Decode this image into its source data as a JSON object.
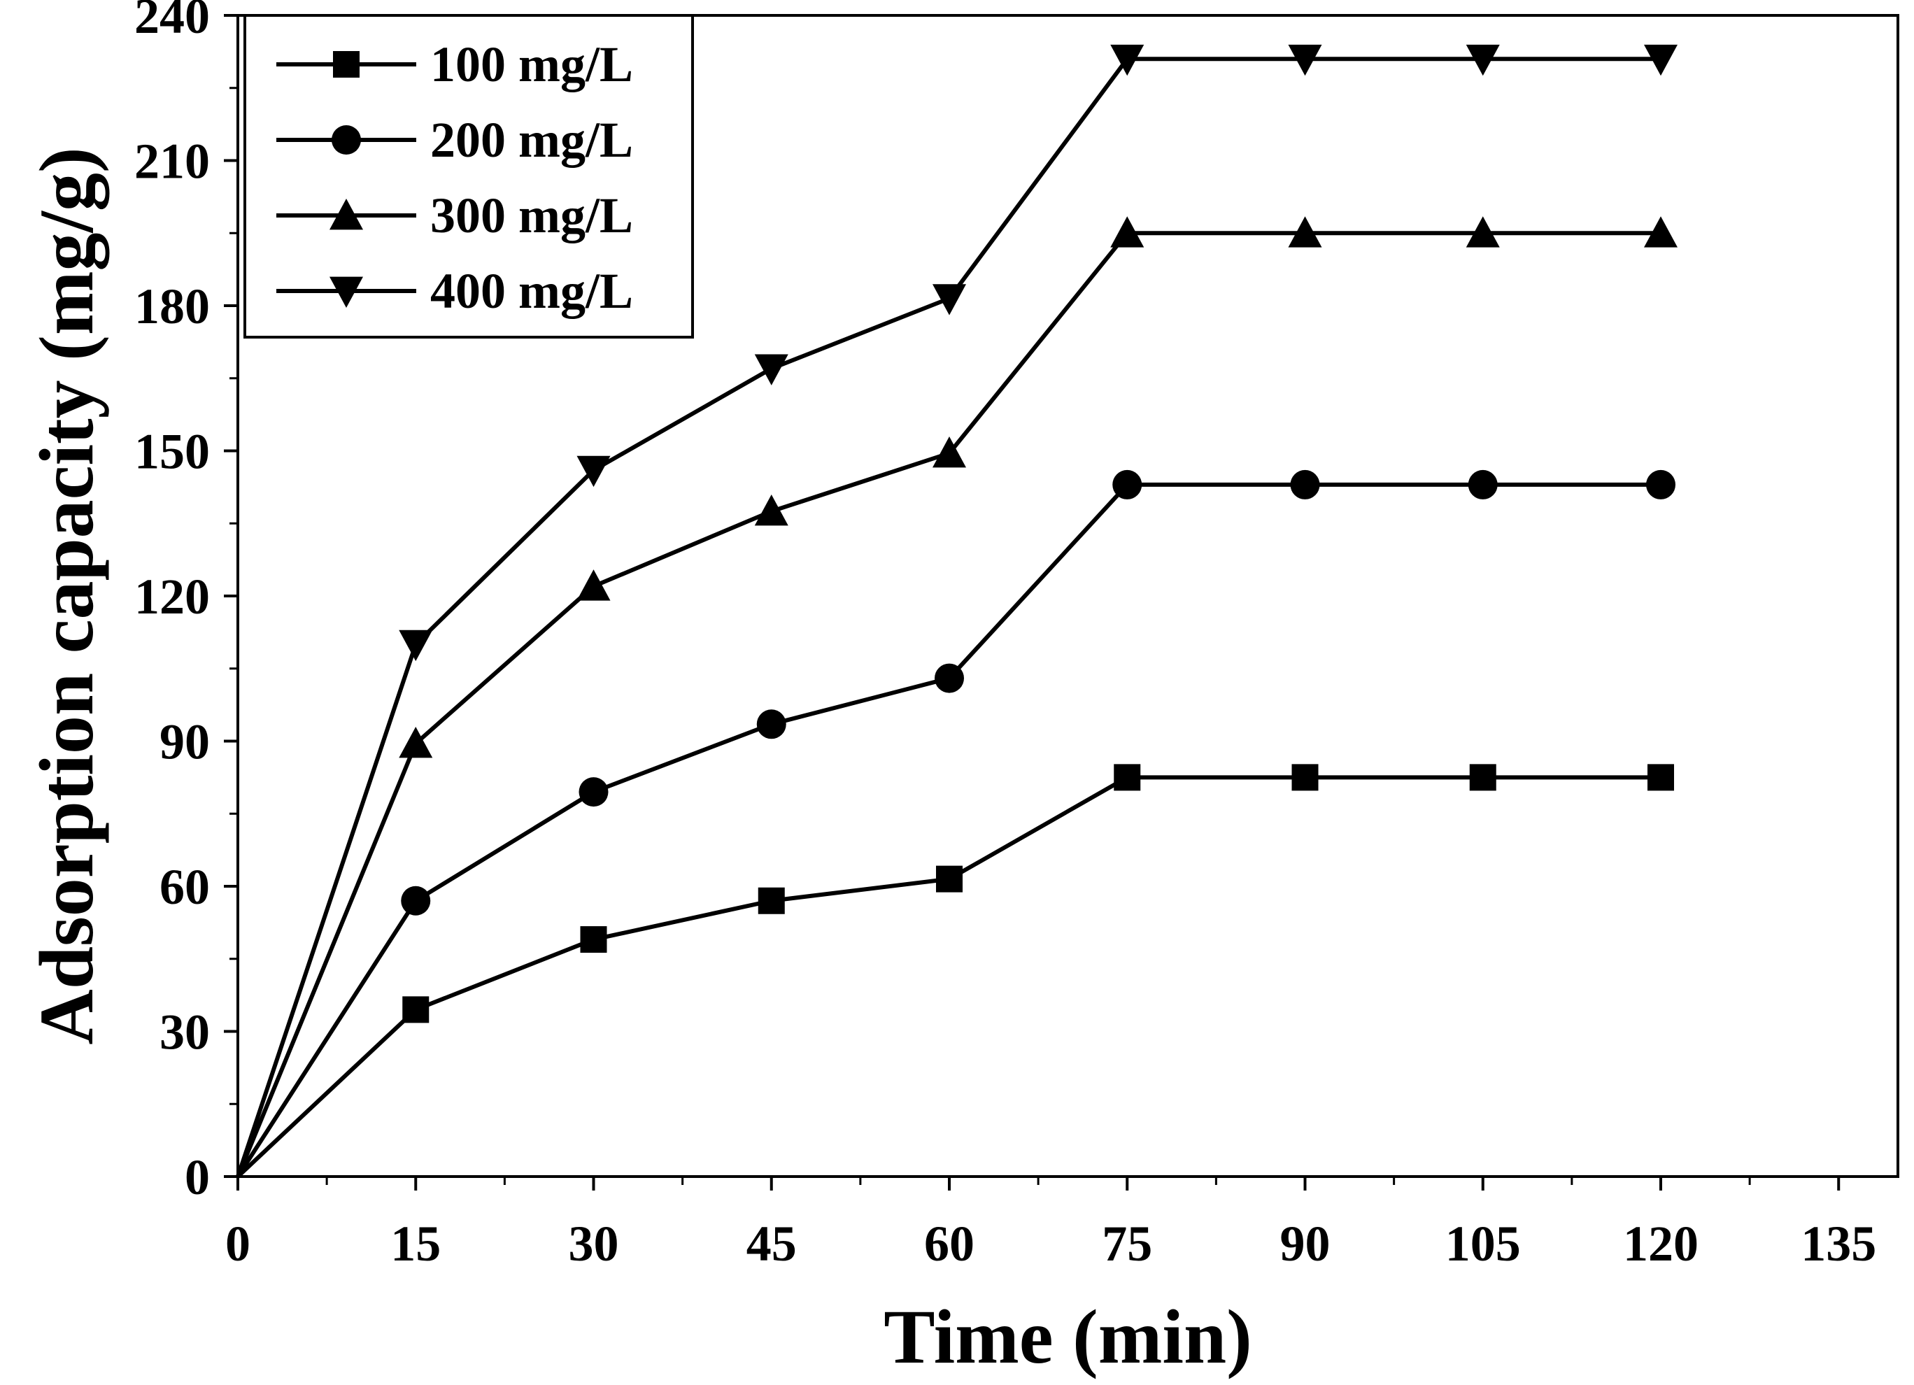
{
  "chart_data": {
    "type": "line",
    "title": "",
    "xlabel": "Time (min)",
    "ylabel": "Adsorption capacity (mg/g)",
    "xlim": [
      0,
      140
    ],
    "ylim": [
      0,
      240
    ],
    "xticks": [
      0,
      15,
      30,
      45,
      60,
      75,
      90,
      105,
      120,
      135
    ],
    "yticks": [
      0,
      30,
      60,
      90,
      120,
      150,
      180,
      210,
      240
    ],
    "x": [
      0,
      15,
      30,
      45,
      60,
      75,
      90,
      105,
      120
    ],
    "grid": false,
    "legend_position": "top-left",
    "series": [
      {
        "name": "100 mg/L",
        "marker": "square",
        "values": [
          0,
          34.5,
          49,
          57,
          61.5,
          82.5,
          82.5,
          82.5,
          82.5
        ]
      },
      {
        "name": "200 mg/L",
        "marker": "circle",
        "values": [
          0,
          57,
          79.5,
          93.5,
          103,
          143,
          143,
          143,
          143
        ]
      },
      {
        "name": "300 mg/L",
        "marker": "triangle-up",
        "values": [
          0,
          89.5,
          122,
          137.5,
          149.5,
          195,
          195,
          195,
          195
        ]
      },
      {
        "name": "400 mg/L",
        "marker": "triangle-down",
        "values": [
          0,
          110,
          146,
          167,
          181.5,
          231,
          231,
          231,
          231
        ]
      }
    ],
    "colors": {
      "line": "#000000",
      "background": "#ffffff"
    }
  }
}
